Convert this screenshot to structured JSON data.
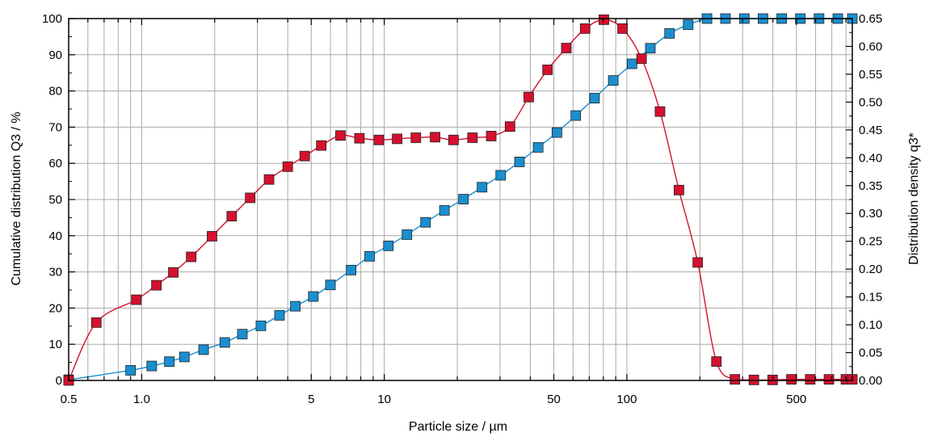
{
  "chart_data": {
    "type": "line",
    "xlabel": "Particle size / µm",
    "ylabel": "Cumulative distribution Q3 / %",
    "y2label": "Distribution density  q3*",
    "xscale": "log",
    "xlim": [
      0.5,
      850
    ],
    "ylim": [
      0,
      100
    ],
    "y2lim": [
      0,
      0.65
    ],
    "grid": true,
    "legend": "none",
    "x_ticks": [
      "0.5",
      "1.0",
      "5",
      "10",
      "50",
      "100",
      "500"
    ],
    "y_ticks": [
      "0",
      "10",
      "20",
      "30",
      "40",
      "50",
      "60",
      "70",
      "80",
      "90",
      "100"
    ],
    "y2_ticks": [
      "0.00",
      "0.05",
      "0.10",
      "0.15",
      "0.20",
      "0.25",
      "0.30",
      "0.35",
      "0.40",
      "0.45",
      "0.50",
      "0.55",
      "0.60",
      "0.65"
    ],
    "colors": {
      "cumulative": "#1a8fd0",
      "density": "#d4112e"
    },
    "series": [
      {
        "axis": "left",
        "color": "#1a8fd0",
        "x": [
          0.5,
          0.9,
          1.1,
          1.3,
          1.5,
          1.8,
          2.2,
          2.6,
          3.1,
          3.7,
          4.3,
          5.1,
          6.0,
          7.3,
          8.7,
          10.4,
          12.4,
          14.8,
          17.7,
          21.2,
          25.3,
          30.2,
          36.1,
          43.1,
          51.5,
          61.6,
          73.6,
          87.9,
          105,
          125,
          150,
          179,
          214,
          255,
          305,
          364,
          435,
          519,
          620,
          741,
          850
        ],
        "y": [
          0.2,
          2.8,
          4.0,
          5.2,
          6.5,
          8.5,
          10.5,
          12.8,
          15.1,
          18.0,
          20.5,
          23.2,
          26.4,
          30.5,
          34.3,
          37.2,
          40.3,
          43.7,
          47.0,
          50.1,
          53.4,
          56.7,
          60.4,
          64.4,
          68.5,
          73.2,
          78.0,
          82.9,
          87.5,
          91.8,
          95.9,
          98.3,
          100,
          100,
          100,
          100,
          100,
          100,
          100,
          100,
          100
        ]
      },
      {
        "axis": "right",
        "color": "#d4112e",
        "x": [
          0.5,
          0.65,
          0.95,
          1.15,
          1.35,
          1.6,
          1.95,
          2.35,
          2.8,
          3.35,
          4.0,
          4.7,
          5.5,
          6.6,
          7.9,
          9.5,
          11.3,
          13.5,
          16.2,
          19.3,
          23.1,
          27.6,
          33,
          39.4,
          47.1,
          56.3,
          67.3,
          80.4,
          96,
          115,
          137,
          164,
          196,
          234,
          279,
          334,
          399,
          477,
          570,
          681,
          800,
          850
        ],
        "y": [
          0.0,
          0.104,
          0.145,
          0.171,
          0.194,
          0.222,
          0.259,
          0.295,
          0.328,
          0.361,
          0.384,
          0.403,
          0.422,
          0.44,
          0.435,
          0.432,
          0.434,
          0.436,
          0.437,
          0.432,
          0.436,
          0.439,
          0.456,
          0.509,
          0.558,
          0.597,
          0.632,
          0.648,
          0.632,
          0.578,
          0.483,
          0.342,
          0.212,
          0.034,
          0.002,
          0.001,
          0.001,
          0.002,
          0.002,
          0.002,
          0.002,
          0.002
        ]
      }
    ]
  }
}
